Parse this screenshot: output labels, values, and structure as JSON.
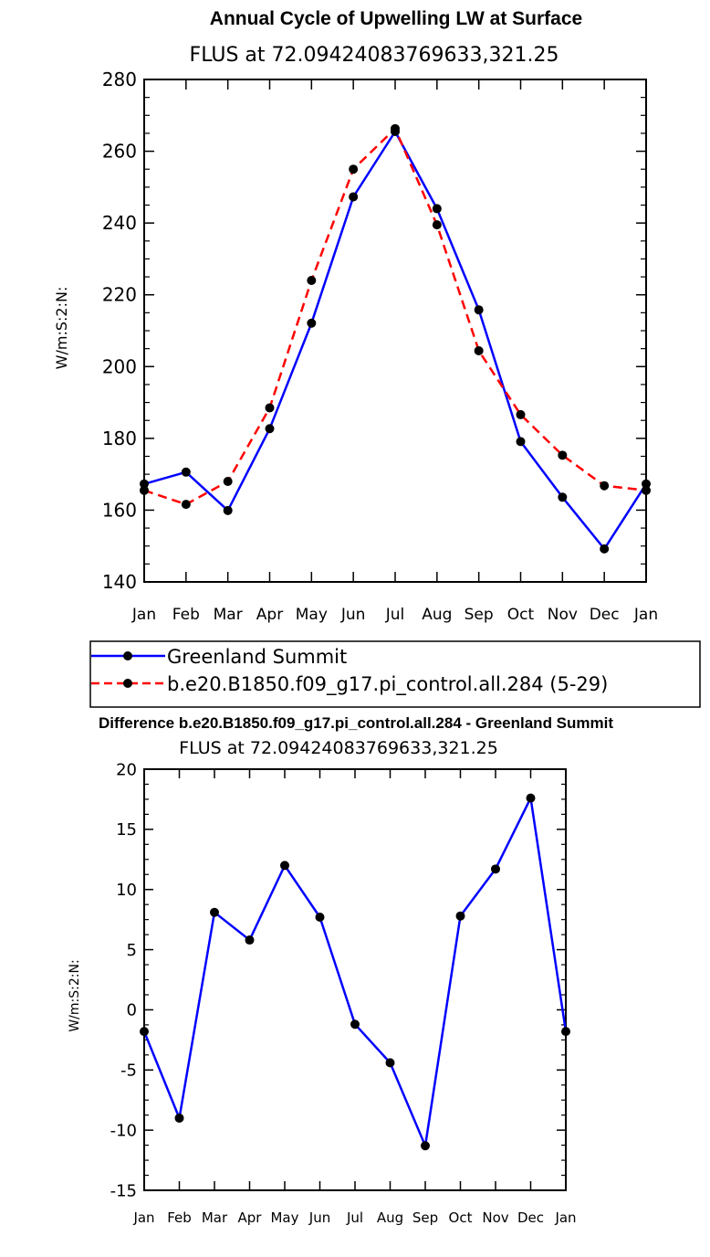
{
  "chart_data": [
    {
      "type": "line",
      "title": "Annual Cycle of Upwelling LW at Surface",
      "subtitle": "FLUS at 72.09424083769633,321.25",
      "ylabel": "W/m:S:2:N:",
      "xlabel": "",
      "categories": [
        "Jan",
        "Feb",
        "Mar",
        "Apr",
        "May",
        "Jun",
        "Jul",
        "Aug",
        "Sep",
        "Oct",
        "Nov",
        "Dec",
        "Jan"
      ],
      "ylim": [
        140,
        280
      ],
      "yticks": [
        "140",
        "160",
        "180",
        "200",
        "220",
        "240",
        "260",
        "280"
      ],
      "series": [
        {
          "name": "Greenland Summit",
          "color": "#0000ff",
          "dash": "solid",
          "values": [
            167.3,
            170.6,
            159.9,
            182.7,
            212.1,
            247.3,
            265.5,
            244.0,
            215.8,
            179.1,
            163.6,
            149.2,
            167.3
          ]
        },
        {
          "name": "b.e20.B1850.f09_g17.pi_control.all.284 (5-29)",
          "color": "#ff0000",
          "dash": "dashed",
          "values": [
            165.5,
            161.6,
            168.0,
            188.5,
            224.0,
            255.0,
            266.3,
            239.5,
            204.4,
            186.6,
            175.3,
            166.8,
            165.5
          ]
        }
      ],
      "legend": "bottom-center"
    },
    {
      "type": "line",
      "title": "Difference b.e20.B1850.f09_g17.pi_control.all.284 - Greenland Summit",
      "subtitle": "FLUS at 72.09424083769633,321.25",
      "ylabel": "W/m:S:2:N:",
      "xlabel": "",
      "categories": [
        "Jan",
        "Feb",
        "Mar",
        "Apr",
        "May",
        "Jun",
        "Jul",
        "Aug",
        "Sep",
        "Oct",
        "Nov",
        "Dec",
        "Jan"
      ],
      "ylim": [
        -15,
        20
      ],
      "yticks": [
        "-15",
        "-10",
        "-5",
        "0",
        "5",
        "10",
        "15",
        "20"
      ],
      "series": [
        {
          "color": "#0000ff",
          "dash": "solid",
          "values": [
            -1.8,
            -9.0,
            8.1,
            5.8,
            12.0,
            7.7,
            -1.2,
            -4.4,
            -11.3,
            7.8,
            11.7,
            17.6,
            -1.8
          ]
        }
      ]
    }
  ]
}
